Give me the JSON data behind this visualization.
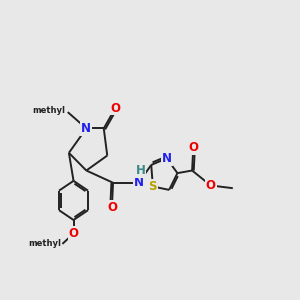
{
  "bg": "#e8e8e8",
  "bond_color": "#222222",
  "lw": 1.4,
  "dbo": 0.07,
  "fs": 8.5,
  "colors": {
    "O": "#ee0000",
    "N": "#2020ee",
    "S": "#b8a000",
    "H": "#3a8888",
    "C": "#222222"
  },
  "xlim": [
    0.5,
    10.5
  ],
  "ylim": [
    1.0,
    9.5
  ]
}
